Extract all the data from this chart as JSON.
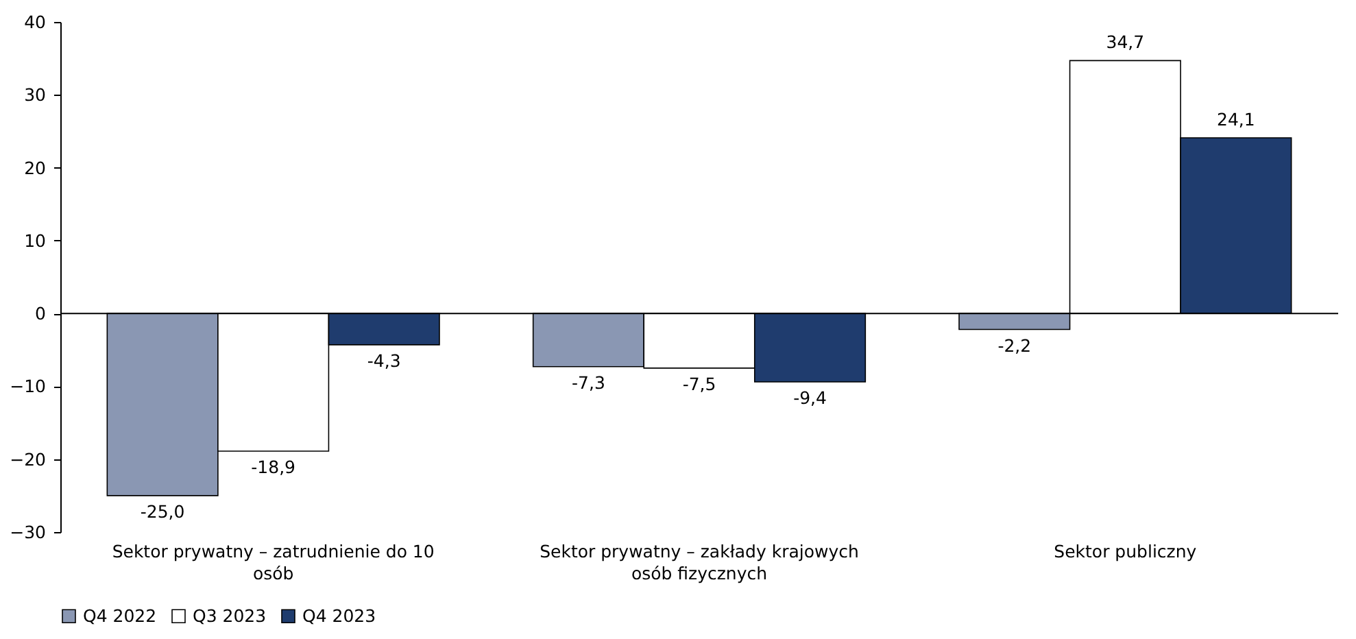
{
  "chart_data": {
    "type": "bar",
    "categories": [
      "Sektor prywatny – zatrudnienie do 10 osób",
      "Sektor prywatny – zakłady krajowych osób fizycznych",
      "Sektor publiczny"
    ],
    "series": [
      {
        "name": "Q4 2022",
        "color": "#8a97b3",
        "values": [
          -25.0,
          -7.3,
          -2.2
        ],
        "value_labels": [
          "-25,0",
          "-7,3",
          "-2,2"
        ]
      },
      {
        "name": "Q3 2023",
        "color": "#ffffff",
        "values": [
          -18.9,
          -7.5,
          34.7
        ],
        "value_labels": [
          "-18,9",
          "-7,5",
          "34,7"
        ]
      },
      {
        "name": "Q4 2023",
        "color": "#1f3c6e",
        "values": [
          -4.3,
          -9.4,
          24.1
        ],
        "value_labels": [
          "-4,3",
          "-9,4",
          "24,1"
        ]
      }
    ],
    "ylim": [
      -30,
      40
    ],
    "yticks": [
      -30,
      -20,
      -10,
      0,
      10,
      20,
      30,
      40
    ],
    "ref_lines": [
      {
        "axis": "y",
        "value": 0,
        "color": "#000000"
      }
    ],
    "legend": "bottom"
  }
}
